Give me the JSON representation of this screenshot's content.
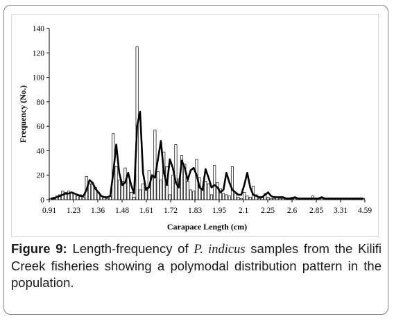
{
  "chart_data": {
    "type": "bar",
    "xlabel": "Carapace Length (cm)",
    "ylabel": "Frequency (No.)",
    "ylim": [
      0,
      140
    ],
    "yticks": [
      0,
      20,
      40,
      60,
      80,
      100,
      120,
      140
    ],
    "xtick_labels": [
      "0.91",
      "1.23",
      "1.36",
      "1.48",
      "1.61",
      "1.72",
      "1.83",
      "1.95",
      "2.1",
      "2.25",
      "2.6",
      "2.85",
      "3.31",
      "4.59"
    ],
    "grid": false,
    "legend": "none",
    "series": [
      {
        "kind": "bars",
        "values": [
          1,
          2,
          3,
          4,
          7,
          6,
          7,
          6,
          5,
          3,
          4,
          2,
          19,
          13,
          14,
          10,
          6,
          3,
          2,
          1,
          3,
          54,
          27,
          16,
          15,
          26,
          20,
          6,
          2,
          125,
          8,
          13,
          10,
          24,
          18,
          57,
          23,
          16,
          39,
          27,
          4,
          20,
          45,
          17,
          36,
          29,
          15,
          8,
          7,
          33,
          18,
          9,
          15,
          13,
          4,
          28,
          14,
          9,
          5,
          4,
          3,
          27,
          5,
          2,
          1,
          6,
          3,
          2,
          11,
          4,
          1,
          2,
          5,
          2,
          1,
          1,
          2,
          1,
          1,
          1,
          1,
          2,
          1,
          1,
          1,
          1,
          1,
          1,
          3,
          1,
          1,
          1,
          1,
          1,
          1,
          1,
          1,
          1,
          1,
          1,
          1,
          1,
          1,
          1,
          1,
          1
        ]
      },
      {
        "kind": "line",
        "values": [
          1,
          1,
          2,
          3,
          4,
          5,
          5,
          6,
          5,
          4,
          3,
          3,
          8,
          16,
          14,
          9,
          6,
          3,
          2,
          2,
          3,
          22,
          45,
          22,
          12,
          14,
          22,
          12,
          5,
          60,
          72,
          22,
          8,
          10,
          20,
          18,
          33,
          48,
          22,
          12,
          33,
          26,
          14,
          10,
          32,
          26,
          16,
          24,
          26,
          20,
          10,
          8,
          25,
          18,
          10,
          12,
          10,
          6,
          8,
          22,
          14,
          8,
          6,
          4,
          4,
          12,
          22,
          10,
          4,
          3,
          2,
          2,
          4,
          6,
          3,
          2,
          2,
          2,
          2,
          1,
          1,
          1,
          2,
          1,
          1,
          1,
          1,
          1,
          1,
          1,
          1,
          2,
          1,
          1,
          1,
          1,
          1,
          1,
          1,
          1,
          1,
          1,
          1,
          1,
          1,
          1
        ]
      }
    ]
  },
  "caption": {
    "label": "Figure 9:",
    "text_before": " Length-frequency of ",
    "species": "P. indicus",
    "text_after": " samples from the Kilifi Creek fisheries showing a polymodal distribution pattern in the population."
  }
}
